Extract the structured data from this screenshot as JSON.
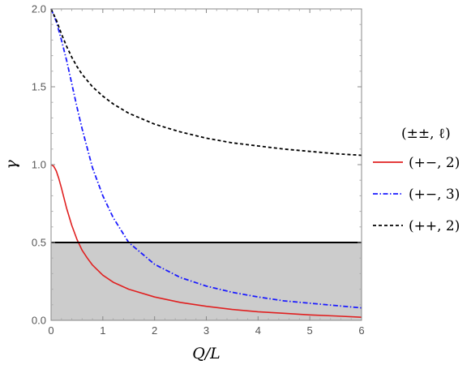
{
  "chart_data": {
    "type": "line",
    "xlabel": "Q/L",
    "ylabel": "γ",
    "xlim": [
      0,
      6
    ],
    "ylim": [
      0,
      2
    ],
    "x_ticks": [
      "0",
      "1",
      "2",
      "3",
      "4",
      "5",
      "6"
    ],
    "y_ticks": [
      "0.0",
      "0.5",
      "1.0",
      "1.5",
      "2.0"
    ],
    "reference_line": {
      "y": 0.5,
      "color": "#000000"
    },
    "shaded_region": {
      "y_from": 0,
      "y_to": 0.5,
      "color": "#cccccc"
    },
    "legend": {
      "title": "(±±, ℓ)",
      "placement": "right"
    },
    "series": [
      {
        "name": "(+−, 2)",
        "color": "#e02020",
        "dash": "solid",
        "x": [
          0,
          0.05,
          0.1,
          0.15,
          0.2,
          0.3,
          0.4,
          0.5,
          0.6,
          0.7,
          0.8,
          1.0,
          1.2,
          1.5,
          2.0,
          2.5,
          3.0,
          3.5,
          4.0,
          4.5,
          5.0,
          5.5,
          6.0
        ],
        "values": [
          1.0,
          0.99,
          0.96,
          0.91,
          0.85,
          0.72,
          0.61,
          0.52,
          0.45,
          0.4,
          0.355,
          0.29,
          0.245,
          0.2,
          0.15,
          0.115,
          0.09,
          0.07,
          0.055,
          0.045,
          0.035,
          0.028,
          0.02
        ]
      },
      {
        "name": "(+−, 3)",
        "color": "#1a1aff",
        "dash": "dashdot",
        "x": [
          0,
          0.1,
          0.2,
          0.3,
          0.4,
          0.5,
          0.6,
          0.8,
          1.0,
          1.2,
          1.5,
          2.0,
          2.5,
          3.0,
          3.5,
          4.0,
          4.5,
          5.0,
          5.5,
          6.0
        ],
        "values": [
          2.0,
          1.92,
          1.8,
          1.67,
          1.52,
          1.37,
          1.23,
          0.98,
          0.8,
          0.66,
          0.5,
          0.36,
          0.275,
          0.22,
          0.18,
          0.15,
          0.125,
          0.11,
          0.095,
          0.08
        ]
      },
      {
        "name": "(++, 2)",
        "color": "#000000",
        "dash": "dashed",
        "x": [
          0,
          0.1,
          0.2,
          0.3,
          0.4,
          0.5,
          0.6,
          0.8,
          1.0,
          1.2,
          1.5,
          2.0,
          2.5,
          3.0,
          3.5,
          4.0,
          4.5,
          5.0,
          5.5,
          6.0
        ],
        "values": [
          2.0,
          1.93,
          1.84,
          1.76,
          1.69,
          1.63,
          1.58,
          1.5,
          1.44,
          1.39,
          1.33,
          1.26,
          1.21,
          1.17,
          1.14,
          1.12,
          1.1,
          1.085,
          1.07,
          1.06
        ]
      }
    ]
  }
}
